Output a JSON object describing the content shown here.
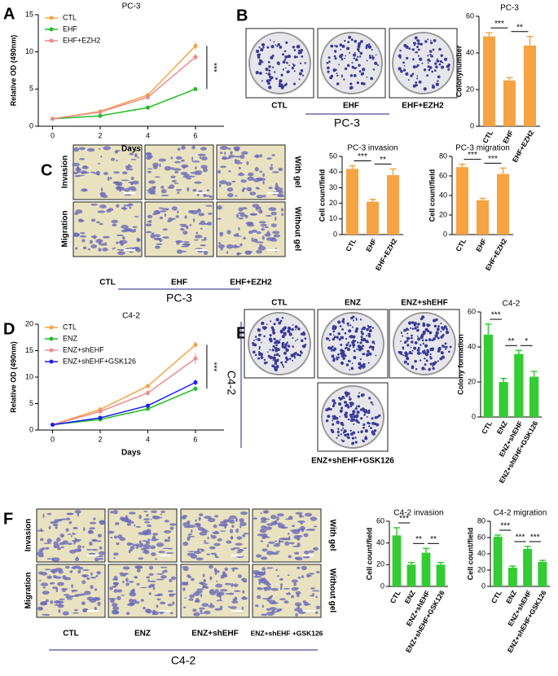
{
  "figure": {
    "panel_letters": [
      "A",
      "B",
      "C",
      "D",
      "E",
      "F"
    ],
    "image_groups": [
      {
        "labels": [
          "CTL",
          "EHF",
          "EHF+EZH2"
        ],
        "group": "PC-3"
      },
      {
        "labels": [
          "CTL",
          "EHF",
          "EHF+EZH2"
        ],
        "rows": [
          "Invasion",
          "Migration"
        ],
        "side": [
          "With gel",
          "Without gel"
        ],
        "group": "PC-3"
      },
      {
        "labels": [
          "CTL",
          "ENZ",
          "ENZ+shEHF",
          "ENZ+shEHF+GSK126"
        ],
        "group": "C4-2"
      },
      {
        "labels": [
          "CTL",
          "ENZ",
          "ENZ+shEHF",
          "ENZ+shEHF +GSK126"
        ],
        "rows": [
          "Invasion",
          "Migration"
        ],
        "side": [
          "With gel",
          "Without gel"
        ],
        "group": "C4-2"
      }
    ]
  },
  "chart_data": [
    {
      "type": "line",
      "title": "PC-3",
      "x_label": "Days",
      "y_label": "Relative OD (490nm)",
      "x": [
        0,
        2,
        4,
        6
      ],
      "xlim": [
        -0.6,
        7.2
      ],
      "xticks": [
        0,
        2,
        4,
        6
      ],
      "ylim": [
        0,
        15
      ],
      "yticks": [
        0,
        5,
        10,
        15
      ],
      "legend": "upper left",
      "series": [
        {
          "name": "CTL",
          "color": "#f5a343",
          "values": [
            1,
            2,
            4.2,
            10.8
          ],
          "errors": [
            0.1,
            0.1,
            0.2,
            0.6
          ]
        },
        {
          "name": "EHF",
          "color": "#22bb22",
          "values": [
            1,
            1.4,
            2.5,
            5
          ],
          "errors": [
            0.05,
            0.1,
            0.1,
            0.15
          ]
        },
        {
          "name": "EHF+EZH2",
          "color": "#f08a8a",
          "values": [
            1,
            1.9,
            3.9,
            9.3
          ],
          "errors": [
            0.1,
            0.1,
            0.2,
            0.4
          ]
        }
      ],
      "annotations": [
        {
          "text": "***"
        }
      ]
    },
    {
      "type": "bar",
      "title": "PC-3",
      "y_label": "Colonynumber",
      "categories": [
        "CTL",
        "EHF",
        "EHF+EZH2"
      ],
      "values": [
        49,
        25,
        44
      ],
      "errors": [
        2,
        1.5,
        5
      ],
      "color": "#f5a343",
      "ylim": [
        0,
        60
      ],
      "yticks": [
        0,
        20,
        40,
        60
      ],
      "annotations": [
        {
          "text": "***",
          "between": [
            0,
            1
          ]
        },
        {
          "text": "**",
          "between": [
            1,
            2
          ]
        }
      ]
    },
    {
      "type": "bar",
      "title": "PC-3 invasion",
      "y_label": "Cell count/field",
      "categories": [
        "CTL",
        "EHF",
        "EHF+EZH2"
      ],
      "values": [
        42,
        21,
        38
      ],
      "errors": [
        2,
        1.5,
        4
      ],
      "color": "#f5a343",
      "ylim": [
        0,
        50
      ],
      "yticks": [
        0,
        10,
        20,
        30,
        40,
        50
      ],
      "annotations": [
        {
          "text": "***",
          "between": [
            0,
            1
          ]
        },
        {
          "text": "**",
          "between": [
            1,
            2
          ]
        }
      ]
    },
    {
      "type": "bar",
      "title": "PC-3 migration",
      "y_label": "Cell count/field",
      "categories": [
        "CTL",
        "EHF",
        "EHF+EZH2"
      ],
      "values": [
        69,
        35,
        62
      ],
      "errors": [
        3,
        2,
        6
      ],
      "color": "#f5a343",
      "ylim": [
        0,
        80
      ],
      "yticks": [
        0,
        20,
        40,
        60,
        80
      ],
      "annotations": [
        {
          "text": "***",
          "between": [
            0,
            1
          ]
        },
        {
          "text": "***",
          "between": [
            1,
            2
          ]
        }
      ]
    },
    {
      "type": "line",
      "title": "C4-2",
      "x_label": "Days",
      "y_label": "Relative OD (490nm)",
      "x": [
        0,
        2,
        4,
        6
      ],
      "xlim": [
        -0.6,
        7.2
      ],
      "xticks": [
        0,
        2,
        4,
        6
      ],
      "ylim": [
        0,
        20
      ],
      "yticks": [
        0,
        5,
        10,
        15,
        20
      ],
      "legend": "upper left",
      "series": [
        {
          "name": "CTL",
          "color": "#f5a343",
          "values": [
            1,
            3.9,
            8.3,
            16.1
          ],
          "errors": [
            0.1,
            0.2,
            0.4,
            0.6
          ]
        },
        {
          "name": "ENZ",
          "color": "#22bb22",
          "values": [
            1,
            2,
            4,
            7.8
          ],
          "errors": [
            0.1,
            0.1,
            0.2,
            0.4
          ]
        },
        {
          "name": "ENZ+shEHF",
          "color": "#f08a8a",
          "values": [
            1,
            3.5,
            7,
            13.5
          ],
          "errors": [
            0.1,
            0.2,
            0.5,
            1
          ]
        },
        {
          "name": "ENZ+shEHF+GSK126",
          "color": "#1a1aff",
          "values": [
            1,
            2.3,
            4.6,
            9
          ],
          "errors": [
            0.1,
            0.1,
            0.3,
            0.5
          ]
        }
      ],
      "annotations": [
        {
          "text": "***"
        }
      ]
    },
    {
      "type": "bar",
      "title": "C4-2",
      "y_label": "Colony formation",
      "categories": [
        "CTL",
        "ENZ",
        "ENZ+shEHF",
        "ENZ+shEHF+GSK126"
      ],
      "values": [
        47,
        20,
        36,
        23
      ],
      "errors": [
        6,
        2,
        2,
        3
      ],
      "color": "#33cc33",
      "ylim": [
        0,
        60
      ],
      "yticks": [
        0,
        20,
        40,
        60
      ],
      "annotations": [
        {
          "text": "***",
          "between": [
            0,
            1
          ]
        },
        {
          "text": "**",
          "between": [
            1,
            2
          ]
        },
        {
          "text": "*",
          "between": [
            2,
            3
          ]
        }
      ]
    },
    {
      "type": "bar",
      "title": "C4-2 invasion",
      "y_label": "Cell count/field",
      "categories": [
        "CTL",
        "ENZ",
        "ENZ+shEHF",
        "ENZ+shEHF+GSK126"
      ],
      "values": [
        47,
        20,
        31,
        20
      ],
      "errors": [
        7,
        2,
        4,
        2
      ],
      "color": "#33cc33",
      "ylim": [
        0,
        60
      ],
      "yticks": [
        0,
        20,
        40,
        60
      ],
      "annotations": [
        {
          "text": "***",
          "between": [
            0,
            1
          ]
        },
        {
          "text": "**",
          "between": [
            1,
            2
          ]
        },
        {
          "text": "**",
          "between": [
            2,
            3
          ]
        }
      ]
    },
    {
      "type": "bar",
      "title": "C4-2 migration",
      "y_label": "Cell count/field",
      "categories": [
        "CTL",
        "ENZ",
        "ENZ+shEHF",
        "ENZ+shEHF+GSK126"
      ],
      "values": [
        61,
        23,
        46,
        30
      ],
      "errors": [
        2,
        2,
        3,
        2
      ],
      "color": "#33cc33",
      "ylim": [
        0,
        80
      ],
      "yticks": [
        0,
        20,
        40,
        60,
        80
      ],
      "annotations": [
        {
          "text": "***",
          "between": [
            0,
            1
          ]
        },
        {
          "text": "***",
          "between": [
            1,
            2
          ]
        },
        {
          "text": "***",
          "between": [
            2,
            3
          ]
        }
      ]
    }
  ]
}
